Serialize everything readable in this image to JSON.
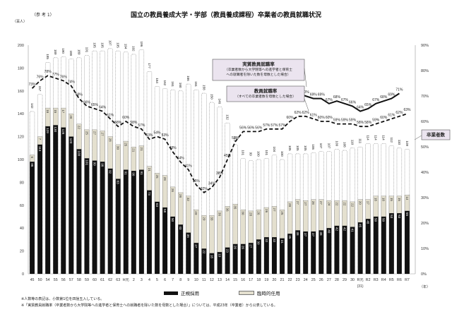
{
  "header": {
    "ref_label": "（参 考 1）",
    "title": "国立の教員養成大学・学部（教員養成課程）卒業者の教員就職状況",
    "unit_label": "（百人）",
    "year_unit": "（年）"
  },
  "legend": {
    "regular": "正規採用",
    "temporary": "臨時的任用"
  },
  "callouts": {
    "jisshitsu_title": "実質教員就職率",
    "jisshitsu_sub1": "（卒業者数から大学院等への進学者と保育士",
    "jisshitsu_sub2": "への就職者を除いた数を母数とした場合）",
    "kyoin_title": "教員就職率",
    "kyoin_sub": "（すべての卒業者数を母数とした場合）",
    "graduates": "卒業者数"
  },
  "notes": [
    "※人数等の表記は、小数第1位を四捨五入している。",
    "※「実質教員就職率（卒業者数から大学院等への進学者と保育士への就職者を除いた数を母数とした場合）」については、平成23年（卒業者）から公表している。"
  ],
  "chart_data": {
    "type": "bar",
    "title": "国立の教員養成大学・学部（教員養成課程）卒業者の教員就職状況",
    "xlabel": "（年）",
    "ylabel": "（百人）",
    "ylim": [
      0,
      200
    ],
    "y2lim": [
      0,
      90
    ],
    "y_ticks": [
      0,
      20,
      40,
      60,
      80,
      100,
      120,
      140,
      160,
      180,
      200
    ],
    "y2_ticks": [
      "0%",
      "10%",
      "20%",
      "30%",
      "40%",
      "50%",
      "60%",
      "70%",
      "80%",
      "90%"
    ],
    "categories": [
      "45",
      "50",
      "54",
      "55",
      "56",
      "57",
      "58",
      "59",
      "60",
      "61",
      "62",
      "63",
      "H元",
      "2",
      "3",
      "4",
      "5",
      "6",
      "7",
      "8",
      "9",
      "10",
      "11",
      "12",
      "13",
      "14",
      "15",
      "16",
      "17",
      "18",
      "19",
      "20",
      "21",
      "22",
      "23",
      "24",
      "25",
      "26",
      "27",
      "28",
      "29",
      "30",
      "R元",
      "R2",
      "R3",
      "R4",
      "R5",
      "R6",
      "R7"
    ],
    "sub_label_R元": "(31)",
    "series": [
      {
        "name": "卒業者数",
        "style": "dotted-outline",
        "values": [
          142,
          157,
          185,
          189,
          190,
          188,
          189,
          191,
          195,
          195,
          197,
          195,
          194,
          192,
          196,
          177,
          164,
          162,
          161,
          160,
          166,
          161,
          158,
          150,
          146,
          132,
          113,
          101,
          99,
          100,
          101,
          104,
          100,
          105,
          105,
          105,
          106,
          107,
          107,
          109,
          108,
          110,
          111,
          114,
          114,
          114,
          112,
          110,
          109
        ]
      },
      {
        "name": "正規採用",
        "style": "black",
        "values": [
          98,
          113,
          129,
          130,
          128,
          120,
          109,
          101,
          99,
          98,
          92,
          83,
          91,
          90,
          91,
          73,
          63,
          58,
          50,
          43,
          36,
          27,
          22,
          18,
          19,
          23,
          26,
          26,
          27,
          30,
          32,
          32,
          31,
          35,
          38,
          37,
          37,
          38,
          40,
          42,
          42,
          41,
          45,
          48,
          50,
          50,
          53,
          53,
          55
        ]
      },
      {
        "name": "臨時的任用",
        "style": "beige",
        "values": [
          6,
          7,
          16,
          15,
          17,
          20,
          22,
          25,
          27,
          27,
          28,
          30,
          25,
          21,
          21,
          21,
          25,
          28,
          26,
          28,
          32,
          29,
          29,
          33,
          36,
          36,
          35,
          30,
          28,
          26,
          26,
          27,
          25,
          28,
          27,
          27,
          28,
          27,
          24,
          22,
          22,
          22,
          20,
          17,
          18,
          18,
          15,
          15,
          14
        ]
      },
      {
        "name": "教員就職率",
        "style": "dashed",
        "axis": "right",
        "values": [
          73,
          76,
          78,
          77,
          76,
          74,
          69,
          66,
          65,
          64,
          61,
          58,
          60,
          58,
          57,
          53,
          54,
          53,
          48,
          44,
          41,
          35,
          32,
          34,
          38,
          45,
          52,
          56,
          56,
          56,
          57,
          57,
          57,
          60,
          62,
          62,
          61,
          60,
          60,
          59,
          59,
          59,
          58,
          58,
          59,
          60,
          61,
          62,
          63
        ]
      },
      {
        "name": "実質教員就職率",
        "style": "solid",
        "axis": "right",
        "start_index": 33,
        "values": [
          71,
          71,
          70,
          69,
          69,
          67,
          68,
          67,
          66,
          64,
          65,
          67,
          68,
          69,
          71
        ]
      }
    ]
  }
}
